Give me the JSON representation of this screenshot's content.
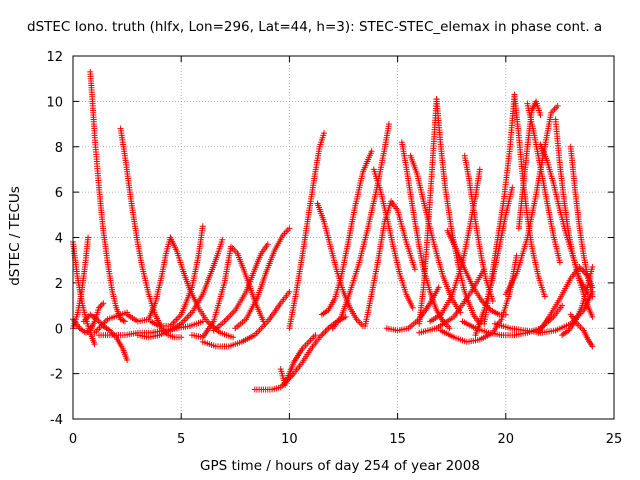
{
  "chart_data": {
    "type": "scatter",
    "title": "dSTEC Iono. truth (hlfx, Lon=296, Lat=44, h=3): STEC-STEC_elemax in phase cont. a",
    "xlabel": "GPS time / hours of day 254 of year 2008",
    "ylabel": "dSTEC  / TECUs",
    "xlim": [
      0,
      25
    ],
    "ylim": [
      -4,
      12
    ],
    "xticks": [
      0,
      5,
      10,
      15,
      20,
      25
    ],
    "yticks": [
      -4,
      -2,
      0,
      2,
      4,
      6,
      8,
      10,
      12
    ],
    "grid": true,
    "marker": "plus",
    "color": "#ff0000",
    "series": [
      {
        "x": [
          0.0,
          0.2,
          0.4,
          0.6,
          0.8,
          1.0
        ],
        "y": [
          3.8,
          2.3,
          1.2,
          0.4,
          -0.2,
          -0.7
        ]
      },
      {
        "x": [
          0.0,
          0.2,
          0.4,
          0.55,
          0.7
        ],
        "y": [
          0.0,
          0.6,
          1.6,
          2.7,
          4.0
        ]
      },
      {
        "x": [
          0.0,
          0.3,
          0.6,
          0.8,
          1.0,
          1.2,
          1.4
        ],
        "y": [
          0.4,
          0.0,
          -0.2,
          -0.1,
          0.3,
          0.9,
          1.1
        ]
      },
      {
        "x": [
          0.8,
          0.9,
          1.0,
          1.2,
          1.4,
          1.6,
          1.8,
          2.0,
          2.2,
          2.4
        ],
        "y": [
          11.3,
          10.0,
          8.5,
          6.2,
          4.3,
          2.9,
          1.7,
          0.9,
          0.4,
          0.3
        ]
      },
      {
        "x": [
          1.0,
          1.3,
          1.6,
          1.9,
          2.2,
          2.5
        ],
        "y": [
          -0.2,
          0.1,
          0.4,
          0.5,
          0.6,
          0.7
        ]
      },
      {
        "x": [
          0.5,
          0.8,
          1.1,
          1.4,
          1.7,
          2.0,
          2.3,
          2.5
        ],
        "y": [
          0.3,
          0.6,
          0.4,
          0.1,
          -0.1,
          -0.4,
          -0.9,
          -1.4
        ]
      },
      {
        "x": [
          2.2,
          2.4,
          2.6,
          2.8,
          3.0,
          3.2,
          3.5,
          3.8,
          4.1,
          4.4,
          4.7,
          5.0
        ],
        "y": [
          8.8,
          7.6,
          6.2,
          4.9,
          3.7,
          2.7,
          1.5,
          0.6,
          0.0,
          -0.3,
          -0.4,
          -0.4
        ]
      },
      {
        "x": [
          1.2,
          1.8,
          2.4,
          3.0,
          3.6,
          4.2,
          4.8,
          5.4,
          6.0
        ],
        "y": [
          -0.3,
          -0.3,
          -0.3,
          -0.2,
          -0.2,
          -0.1,
          0.0,
          0.1,
          0.3
        ]
      },
      {
        "x": [
          2.5,
          3.0,
          3.5,
          3.8,
          4.1,
          4.3,
          4.5
        ],
        "y": [
          0.6,
          0.3,
          0.4,
          1.1,
          2.3,
          3.3,
          4.0
        ]
      },
      {
        "x": [
          4.5,
          4.8,
          5.1,
          5.4,
          5.8,
          6.2,
          6.8,
          7.4
        ],
        "y": [
          4.0,
          3.4,
          2.5,
          1.7,
          0.9,
          0.3,
          -0.2,
          -0.4
        ]
      },
      {
        "x": [
          3.6,
          4.0,
          4.5,
          5.0,
          5.5,
          5.8,
          6.0
        ],
        "y": [
          0.3,
          0.1,
          0.1,
          0.6,
          1.8,
          3.2,
          4.5
        ]
      },
      {
        "x": [
          3.0,
          3.5,
          4.0,
          4.5,
          5.0,
          5.5,
          6.0,
          6.4,
          6.7,
          6.9
        ],
        "y": [
          -0.3,
          -0.4,
          -0.3,
          -0.1,
          0.2,
          0.7,
          1.5,
          2.5,
          3.3,
          3.9
        ]
      },
      {
        "x": [
          5.5,
          6.0,
          6.5,
          7.0,
          7.3,
          7.6,
          8.0,
          8.4,
          8.8
        ],
        "y": [
          -0.3,
          -0.4,
          0.3,
          2.0,
          3.6,
          3.3,
          2.3,
          1.2,
          0.3
        ]
      },
      {
        "x": [
          6.0,
          6.6,
          7.2,
          7.8,
          8.4,
          9.0,
          9.6,
          10.0
        ],
        "y": [
          -0.6,
          -0.8,
          -0.8,
          -0.6,
          -0.3,
          0.3,
          1.1,
          1.6
        ]
      },
      {
        "x": [
          7.5,
          8.0,
          8.5,
          8.9,
          9.3,
          9.7,
          10.0
        ],
        "y": [
          0.0,
          0.4,
          1.3,
          2.4,
          3.4,
          4.1,
          4.4
        ]
      },
      {
        "x": [
          6.5,
          7.0,
          7.5,
          8.0,
          8.4,
          8.7,
          9.0
        ],
        "y": [
          -0.1,
          0.3,
          0.8,
          1.6,
          2.6,
          3.3,
          3.7
        ]
      },
      {
        "x": [
          8.4,
          8.8,
          9.2,
          9.6,
          9.8
        ],
        "y": [
          -2.7,
          -2.7,
          -2.7,
          -2.6,
          -2.4
        ]
      },
      {
        "x": [
          9.6,
          9.8,
          10.0,
          10.2,
          10.4,
          10.6,
          10.9,
          11.2
        ],
        "y": [
          -1.8,
          -2.5,
          -2.0,
          -1.5,
          -1.2,
          -0.9,
          -0.6,
          -0.3
        ]
      },
      {
        "x": [
          9.8,
          10.2,
          10.6,
          11.0,
          11.4,
          11.8,
          12.2,
          12.6
        ],
        "y": [
          -2.4,
          -2.0,
          -1.5,
          -0.9,
          -0.4,
          0.0,
          0.3,
          0.5
        ]
      },
      {
        "x": [
          10.0,
          10.3,
          10.6,
          10.9,
          11.2,
          11.4,
          11.6
        ],
        "y": [
          0.0,
          1.5,
          3.2,
          5.1,
          6.9,
          8.0,
          8.6
        ]
      },
      {
        "x": [
          11.3,
          11.6,
          11.9,
          12.2,
          12.5,
          12.8,
          13.1,
          13.4
        ],
        "y": [
          5.5,
          4.7,
          3.6,
          2.5,
          1.6,
          0.9,
          0.4,
          0.1
        ]
      },
      {
        "x": [
          11.5,
          11.8,
          12.1,
          12.4,
          12.7,
          13.0,
          13.4,
          13.8
        ],
        "y": [
          0.6,
          0.8,
          1.3,
          2.3,
          3.7,
          5.2,
          6.9,
          7.8
        ]
      },
      {
        "x": [
          12.0,
          12.4,
          12.8,
          13.2,
          13.6,
          14.0,
          14.4,
          14.6
        ],
        "y": [
          0.0,
          0.5,
          1.6,
          2.8,
          4.3,
          6.0,
          7.9,
          9.0
        ]
      },
      {
        "x": [
          13.5,
          13.8,
          14.1,
          14.4,
          14.7,
          15.0,
          15.4,
          15.8
        ],
        "y": [
          0.1,
          1.5,
          3.0,
          4.7,
          5.6,
          5.2,
          3.8,
          2.6
        ]
      },
      {
        "x": [
          13.9,
          14.2,
          14.5,
          14.8,
          15.1,
          15.4,
          15.7
        ],
        "y": [
          7.0,
          6.1,
          4.9,
          3.6,
          2.4,
          1.5,
          0.9
        ]
      },
      {
        "x": [
          14.5,
          15.0,
          15.5,
          16.0,
          16.5,
          16.9
        ],
        "y": [
          0.0,
          -0.1,
          0.0,
          0.4,
          1.1,
          1.8
        ]
      },
      {
        "x": [
          15.2,
          15.4,
          15.6,
          15.8,
          16.0,
          16.2,
          16.5,
          16.8,
          17.1,
          17.4
        ],
        "y": [
          8.2,
          7.1,
          5.9,
          4.7,
          3.6,
          2.6,
          1.6,
          0.8,
          0.3,
          0.0
        ]
      },
      {
        "x": [
          15.6,
          15.9,
          16.2,
          16.5,
          16.8,
          17.1,
          17.5,
          17.9
        ],
        "y": [
          7.6,
          6.8,
          5.6,
          4.4,
          3.3,
          2.3,
          1.3,
          0.7
        ]
      },
      {
        "x": [
          16.0,
          16.2,
          16.4,
          16.6,
          16.8
        ],
        "y": [
          0.2,
          1.8,
          4.3,
          7.1,
          10.1
        ]
      },
      {
        "x": [
          16.8,
          17.0,
          17.2,
          17.5,
          17.8,
          18.1,
          18.5,
          18.8
        ],
        "y": [
          10.1,
          8.0,
          6.2,
          4.3,
          2.8,
          1.6,
          0.6,
          0.2
        ]
      },
      {
        "x": [
          16.5,
          17.0,
          17.5,
          18.0,
          18.3,
          18.6,
          18.8
        ],
        "y": [
          0.3,
          0.6,
          1.4,
          2.9,
          4.3,
          5.8,
          7.0
        ]
      },
      {
        "x": [
          17.3,
          17.7,
          18.1,
          18.5,
          18.9,
          19.3,
          19.7,
          20.0
        ],
        "y": [
          4.3,
          3.5,
          2.6,
          1.8,
          1.2,
          0.8,
          0.6,
          0.6
        ]
      },
      {
        "x": [
          18.1,
          18.3,
          18.5,
          18.7,
          18.9,
          19.1,
          19.4
        ],
        "y": [
          7.6,
          6.6,
          5.3,
          4.1,
          3.0,
          2.1,
          1.2
        ]
      },
      {
        "x": [
          17.0,
          17.6,
          18.2,
          18.8,
          19.4,
          19.8,
          20.2,
          20.5
        ],
        "y": [
          -0.1,
          -0.4,
          -0.6,
          -0.5,
          -0.2,
          0.4,
          1.6,
          3.2
        ]
      },
      {
        "x": [
          18.6,
          19.0,
          19.4,
          19.7,
          20.0,
          20.3
        ],
        "y": [
          -0.3,
          0.8,
          2.2,
          3.6,
          5.0,
          6.2
        ]
      },
      {
        "x": [
          19.0,
          19.3,
          19.6,
          19.9,
          20.2,
          20.4
        ],
        "y": [
          0.2,
          1.9,
          3.8,
          5.6,
          8.0,
          10.3
        ]
      },
      {
        "x": [
          20.4,
          20.6,
          20.8,
          21.0,
          21.2,
          21.5,
          21.8
        ],
        "y": [
          10.3,
          8.5,
          6.5,
          4.9,
          3.6,
          2.3,
          1.4
        ]
      },
      {
        "x": [
          20.6,
          20.8,
          21.0,
          21.2,
          21.4,
          21.6
        ],
        "y": [
          4.4,
          6.2,
          8.0,
          9.6,
          10.0,
          9.4
        ]
      },
      {
        "x": [
          21.0,
          21.3,
          21.6,
          21.9,
          22.2,
          22.5
        ],
        "y": [
          9.9,
          8.6,
          7.1,
          5.6,
          4.1,
          2.9
        ]
      },
      {
        "x": [
          20.0,
          20.5,
          21.0,
          21.4,
          21.8,
          22.1,
          22.4
        ],
        "y": [
          1.5,
          2.4,
          4.0,
          5.9,
          8.0,
          9.5,
          9.8
        ]
      },
      {
        "x": [
          21.6,
          21.9,
          22.2,
          22.5,
          22.8,
          23.1,
          23.4,
          23.8
        ],
        "y": [
          8.1,
          7.4,
          6.4,
          5.2,
          4.1,
          3.2,
          2.2,
          1.5
        ]
      },
      {
        "x": [
          22.3,
          22.5,
          22.7,
          22.9,
          23.1,
          23.4,
          23.7,
          24.0
        ],
        "y": [
          9.2,
          7.2,
          5.6,
          4.2,
          3.2,
          2.1,
          1.2,
          0.5
        ]
      },
      {
        "x": [
          19.5,
          20.2,
          20.9,
          21.6,
          22.3,
          23.0,
          23.6,
          24.0
        ],
        "y": [
          0.2,
          0.0,
          -0.1,
          -0.2,
          -0.1,
          0.2,
          0.8,
          1.6
        ]
      },
      {
        "x": [
          21.5,
          22.0,
          22.5,
          23.0,
          23.4,
          23.8,
          24.0
        ],
        "y": [
          -0.2,
          0.5,
          1.3,
          2.2,
          2.7,
          2.3,
          1.8
        ]
      },
      {
        "x": [
          23.0,
          23.2,
          23.4,
          23.6,
          23.8,
          24.0
        ],
        "y": [
          8.0,
          6.1,
          4.5,
          3.2,
          2.2,
          1.4
        ]
      },
      {
        "x": [
          22.6,
          22.9,
          23.2,
          23.5,
          23.8,
          24.0
        ],
        "y": [
          -0.3,
          -0.1,
          0.3,
          0.9,
          1.9,
          2.7
        ]
      },
      {
        "x": [
          23.0,
          23.3,
          23.6,
          23.8,
          24.0
        ],
        "y": [
          0.6,
          0.2,
          -0.1,
          -0.5,
          -0.8
        ]
      },
      {
        "x": [
          18.0,
          18.6,
          19.2,
          19.8,
          20.4,
          21.0,
          21.6,
          22.2,
          22.6
        ],
        "y": [
          0.3,
          0.0,
          -0.2,
          -0.3,
          -0.3,
          -0.2,
          0.0,
          0.5,
          1.0
        ]
      },
      {
        "x": [
          16.0,
          16.8,
          17.6,
          18.4,
          19.0
        ],
        "y": [
          -0.2,
          0.0,
          0.5,
          1.6,
          2.6
        ]
      }
    ]
  }
}
